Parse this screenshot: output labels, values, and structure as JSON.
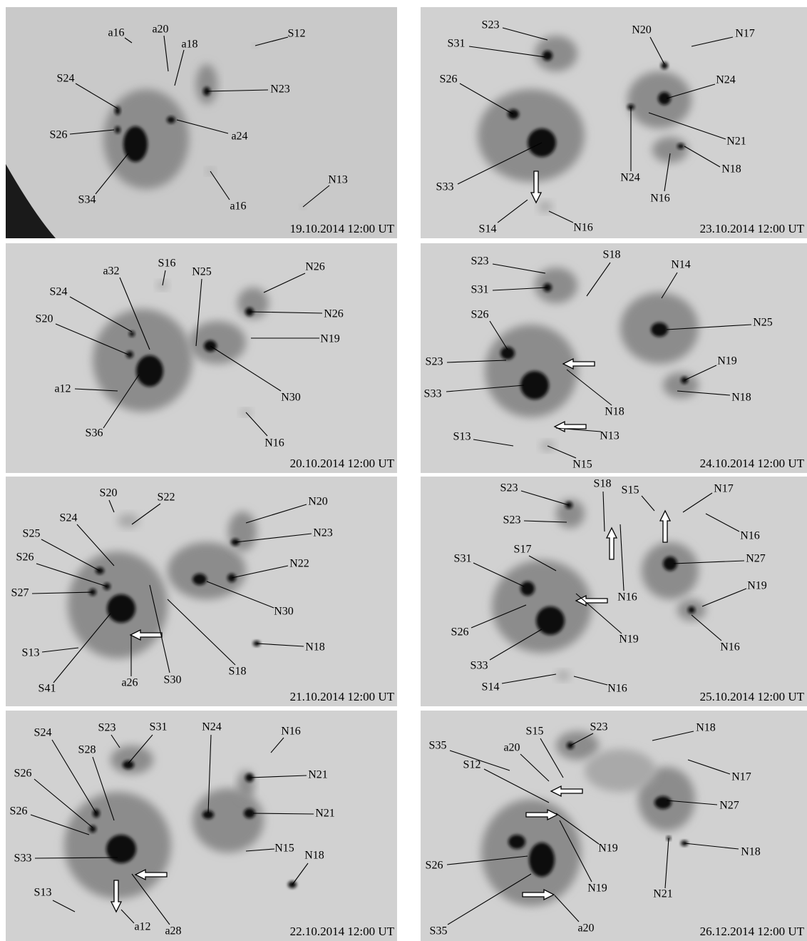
{
  "panels": [
    {
      "date": "19.10.2014 12:00 UT",
      "labels": [
        "a16",
        "a20",
        "a18",
        "S12",
        "N23",
        "S24",
        "S26",
        "a24",
        "S34",
        "a16",
        "N13"
      ]
    },
    {
      "date": "23.10.2014 12:00 UT",
      "labels": [
        "S23",
        "S31",
        "N20",
        "N17",
        "S26",
        "N24",
        "N21",
        "N18",
        "N24",
        "N16",
        "S33",
        "S14",
        "N16"
      ]
    },
    {
      "date": "20.10.2014 12:00 UT",
      "labels": [
        "S16",
        "a32",
        "N25",
        "N26",
        "S24",
        "N26",
        "S20",
        "N19",
        "N30",
        "a12",
        "S36",
        "N16"
      ]
    },
    {
      "date": "24.10.2014 12:00 UT",
      "labels": [
        "S23",
        "S18",
        "N14",
        "S31",
        "N25",
        "S26",
        "N19",
        "S23",
        "N18",
        "N18",
        "S33",
        "N13",
        "S13",
        "N15"
      ]
    },
    {
      "date": "21.10.2014 12:00 UT",
      "labels": [
        "S20",
        "S22",
        "N20",
        "N23",
        "S24",
        "S25",
        "N22",
        "S26",
        "S27",
        "N30",
        "N18",
        "S13",
        "S18",
        "S41",
        "a26",
        "S30"
      ]
    },
    {
      "date": "25.10.2014 12:00 UT",
      "labels": [
        "S23",
        "S18",
        "S15",
        "N17",
        "N16",
        "S23",
        "N27",
        "S31",
        "S17",
        "N19",
        "N16",
        "N19",
        "S26",
        "N16",
        "S33",
        "S14",
        "N16"
      ]
    },
    {
      "date": "22.10.2014 12:00 UT",
      "labels": [
        "S24",
        "S23",
        "S31",
        "N24",
        "N16",
        "S28",
        "S26",
        "N21",
        "S26",
        "N21",
        "S33",
        "N15",
        "N18",
        "S13",
        "a12",
        "a28"
      ]
    },
    {
      "date": "26.12.2014 12:00 UT",
      "labels": [
        "S15",
        "S23",
        "N18",
        "a20",
        "N17",
        "S12",
        "N27",
        "S35",
        "N19",
        "N18",
        "S26",
        "N19",
        "N21",
        "S35",
        "a20"
      ]
    }
  ]
}
